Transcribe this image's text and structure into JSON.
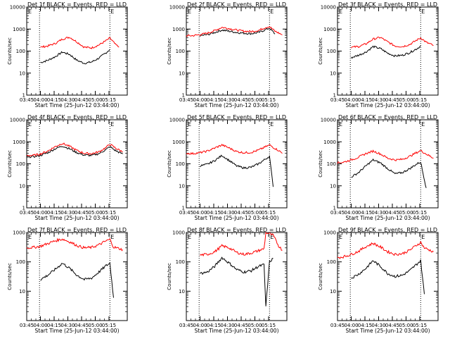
{
  "chart_data": [
    {
      "type": "line",
      "title": "Det 1f BLACK = Events, RED = LLD",
      "ylabel": "Counts/sec",
      "xlabel": "Start Time (25-Jun-12 03:44:00)",
      "marker": "E",
      "yscale": "log",
      "ylim": [
        1,
        10000
      ],
      "xlim": [
        225,
        335
      ],
      "x_ticks": [
        "03:45",
        "04:00",
        "04:15",
        "04:30",
        "04:45",
        "05:00",
        "05:15"
      ],
      "y_ticks": [
        "1",
        "10",
        "100",
        "1000",
        "10000"
      ],
      "vlines": [
        239,
        316
      ],
      "x": [
        240,
        248,
        256,
        264,
        272,
        280,
        288,
        296,
        304,
        312,
        316,
        322,
        326
      ],
      "series": [
        {
          "color": "#000000",
          "values": [
            30,
            38,
            55,
            90,
            70,
            38,
            28,
            32,
            48,
            85,
            120,
            null,
            null
          ]
        },
        {
          "color": "#ff0000",
          "values": [
            150,
            170,
            220,
            350,
            430,
            260,
            150,
            140,
            190,
            300,
            390,
            200,
            150
          ]
        }
      ]
    },
    {
      "type": "line",
      "title": "Det 2f BLACK = Events, RED = LLD",
      "ylabel": "Counts/sec",
      "xlabel": "Start Time (25-Jun-12 03:44:00)",
      "marker": "E",
      "yscale": "log",
      "ylim": [
        1,
        10000
      ],
      "xlim": [
        225,
        335
      ],
      "x_ticks": [
        "03:45",
        "04:00",
        "04:15",
        "04:30",
        "04:45",
        "05:00",
        "05:15"
      ],
      "y_ticks": [
        "1",
        "10",
        "100",
        "1000",
        "10000"
      ],
      "vlines": [
        239,
        316
      ],
      "x": [
        225,
        232,
        240,
        248,
        256,
        264,
        272,
        280,
        288,
        296,
        304,
        312,
        316,
        322,
        330
      ],
      "series": [
        {
          "color": "#000000",
          "values": [
            null,
            null,
            500,
            560,
            700,
            900,
            800,
            700,
            650,
            620,
            700,
            950,
            1100,
            600,
            null
          ]
        },
        {
          "color": "#ff0000",
          "values": [
            500,
            500,
            560,
            650,
            850,
            1200,
            1050,
            900,
            800,
            770,
            870,
            1200,
            1300,
            800,
            550
          ]
        }
      ]
    },
    {
      "type": "line",
      "title": "Det 3f BLACK = Events, RED = LLD",
      "ylabel": "Counts/sec",
      "xlabel": "Start Time (25-Jun-12 03:44:00)",
      "marker": "E",
      "yscale": "log",
      "ylim": [
        1,
        10000
      ],
      "xlim": [
        225,
        335
      ],
      "x_ticks": [
        "03:45",
        "04:00",
        "04:15",
        "04:30",
        "04:45",
        "05:00",
        "05:15"
      ],
      "y_ticks": [
        "1",
        "10",
        "100",
        "1000",
        "10000"
      ],
      "vlines": [
        239,
        316
      ],
      "x": [
        240,
        248,
        256,
        264,
        272,
        280,
        288,
        296,
        304,
        312,
        316,
        322,
        330
      ],
      "series": [
        {
          "color": "#000000",
          "values": [
            50,
            65,
            90,
            160,
            130,
            80,
            60,
            65,
            85,
            130,
            170,
            null,
            null
          ]
        },
        {
          "color": "#ff0000",
          "values": [
            150,
            160,
            210,
            350,
            420,
            260,
            170,
            160,
            200,
            320,
            400,
            250,
            180
          ]
        }
      ]
    },
    {
      "type": "line",
      "title": "Det 4f BLACK = Events, RED = LLD",
      "ylabel": "Counts/sec",
      "xlabel": "Start Time (25-Jun-12 03:44:00)",
      "marker": "E",
      "yscale": "log",
      "ylim": [
        1,
        10000
      ],
      "xlim": [
        225,
        335
      ],
      "x_ticks": [
        "03:45",
        "04:00",
        "04:15",
        "04:30",
        "04:45",
        "05:00",
        "05:15"
      ],
      "y_ticks": [
        "1",
        "10",
        "100",
        "1000",
        "10000"
      ],
      "vlines": [
        239,
        316
      ],
      "x": [
        225,
        232,
        240,
        248,
        256,
        264,
        272,
        280,
        288,
        296,
        304,
        312,
        316,
        322,
        330
      ],
      "series": [
        {
          "color": "#000000",
          "values": [
            210,
            210,
            240,
            320,
            480,
            650,
            480,
            320,
            250,
            240,
            290,
            450,
            600,
            400,
            280
          ]
        },
        {
          "color": "#ff0000",
          "values": [
            240,
            240,
            280,
            380,
            600,
            850,
            620,
            400,
            300,
            290,
            350,
            560,
            780,
            520,
            350
          ]
        }
      ]
    },
    {
      "type": "line",
      "title": "Det 5f BLACK = Events, RED = LLD",
      "ylabel": "Counts/sec",
      "xlabel": "Start Time (25-Jun-12 03:44:00)",
      "marker": "E",
      "yscale": "log",
      "ylim": [
        1,
        10000
      ],
      "xlim": [
        225,
        335
      ],
      "x_ticks": [
        "03:45",
        "04:00",
        "04:15",
        "04:30",
        "04:45",
        "05:00",
        "05:15"
      ],
      "y_ticks": [
        "1",
        "10",
        "100",
        "1000",
        "10000"
      ],
      "vlines": [
        239,
        316
      ],
      "x": [
        225,
        232,
        240,
        248,
        256,
        264,
        272,
        280,
        288,
        296,
        304,
        312,
        316,
        320,
        326,
        330
      ],
      "series": [
        {
          "color": "#000000",
          "values": [
            null,
            null,
            80,
            95,
            140,
            240,
            140,
            80,
            65,
            70,
            100,
            170,
            220,
            9,
            null,
            null
          ]
        },
        {
          "color": "#ff0000",
          "values": [
            300,
            290,
            320,
            380,
            520,
            720,
            520,
            360,
            320,
            330,
            420,
            600,
            720,
            560,
            400,
            300
          ]
        }
      ]
    },
    {
      "type": "line",
      "title": "Det 6f BLACK = Events, RED = LLD",
      "ylabel": "Counts/sec",
      "xlabel": "Start Time (25-Jun-12 03:44:00)",
      "marker": "E",
      "yscale": "log",
      "ylim": [
        1,
        10000
      ],
      "xlim": [
        225,
        335
      ],
      "x_ticks": [
        "03:45",
        "04:00",
        "04:15",
        "04:30",
        "04:45",
        "05:00",
        "05:15"
      ],
      "y_ticks": [
        "1",
        "10",
        "100",
        "1000",
        "10000"
      ],
      "vlines": [
        239,
        316
      ],
      "x": [
        225,
        232,
        240,
        248,
        256,
        264,
        272,
        280,
        288,
        296,
        304,
        312,
        316,
        322,
        330
      ],
      "series": [
        {
          "color": "#000000",
          "values": [
            null,
            null,
            25,
            40,
            80,
            150,
            110,
            60,
            35,
            40,
            60,
            100,
            120,
            8,
            null
          ]
        },
        {
          "color": "#ff0000",
          "values": [
            110,
            120,
            150,
            200,
            290,
            380,
            280,
            180,
            150,
            160,
            220,
            330,
            400,
            280,
            180
          ]
        }
      ]
    },
    {
      "type": "line",
      "title": "Det 7f BLACK = Events, RED = LLD",
      "ylabel": "Counts/sec",
      "xlabel": "Start Time (25-Jun-12 03:44:00)",
      "marker": "E",
      "yscale": "log",
      "ylim": [
        1,
        1000
      ],
      "xlim": [
        225,
        335
      ],
      "x_ticks": [
        "03:45",
        "04:00",
        "04:15",
        "04:30",
        "04:45",
        "05:00",
        "05:15"
      ],
      "y_ticks": [
        "10",
        "100",
        "1000"
      ],
      "vlines": [
        239,
        316
      ],
      "x": [
        225,
        232,
        240,
        248,
        256,
        264,
        272,
        280,
        288,
        296,
        304,
        312,
        316,
        320,
        330
      ],
      "series": [
        {
          "color": "#000000",
          "values": [
            null,
            null,
            25,
            35,
            55,
            90,
            60,
            35,
            25,
            28,
            45,
            75,
            90,
            6,
            null
          ]
        },
        {
          "color": "#ff0000",
          "values": [
            300,
            310,
            340,
            420,
            520,
            600,
            480,
            360,
            300,
            310,
            380,
            520,
            580,
            320,
            260
          ]
        }
      ]
    },
    {
      "type": "line",
      "title": "Det 8f BLACK = Events, RED = LLD",
      "ylabel": "Counts/sec",
      "xlabel": "Start Time (25-Jun-12 03:44:00)",
      "marker": "E",
      "yscale": "log",
      "ylim": [
        1,
        1000
      ],
      "xlim": [
        225,
        335
      ],
      "x_ticks": [
        "03:45",
        "04:00",
        "04:15",
        "04:30",
        "04:45",
        "05:00",
        "05:15"
      ],
      "y_ticks": [
        "10",
        "100",
        "1000"
      ],
      "vlines": [
        239,
        316
      ],
      "x": [
        240,
        248,
        256,
        264,
        272,
        280,
        288,
        296,
        304,
        310,
        312,
        316,
        320,
        326,
        330
      ],
      "series": [
        {
          "color": "#000000",
          "values": [
            40,
            45,
            70,
            140,
            90,
            55,
            45,
            50,
            70,
            80,
            3,
            100,
            130,
            null,
            null
          ]
        },
        {
          "color": "#ff0000",
          "values": [
            170,
            180,
            220,
            350,
            300,
            210,
            180,
            200,
            240,
            280,
            1000,
            900,
            800,
            350,
            250
          ]
        }
      ]
    },
    {
      "type": "line",
      "title": "Det 9f BLACK = Events, RED = LLD",
      "ylabel": "Counts/sec",
      "xlabel": "Start Time (25-Jun-12 03:44:00)",
      "marker": "E",
      "yscale": "log",
      "ylim": [
        1,
        1000
      ],
      "xlim": [
        225,
        335
      ],
      "x_ticks": [
        "03:45",
        "04:00",
        "04:15",
        "04:30",
        "04:45",
        "05:00",
        "05:15"
      ],
      "y_ticks": [
        "10",
        "100",
        "1000"
      ],
      "vlines": [
        239,
        316
      ],
      "x": [
        225,
        232,
        240,
        248,
        256,
        264,
        272,
        280,
        288,
        296,
        304,
        312,
        316,
        320,
        330
      ],
      "series": [
        {
          "color": "#000000",
          "values": [
            null,
            null,
            28,
            38,
            60,
            110,
            70,
            40,
            32,
            35,
            50,
            85,
            110,
            8,
            null
          ]
        },
        {
          "color": "#ff0000",
          "values": [
            140,
            150,
            180,
            230,
            330,
            430,
            320,
            220,
            180,
            190,
            250,
            380,
            460,
            300,
            220
          ]
        }
      ]
    }
  ]
}
